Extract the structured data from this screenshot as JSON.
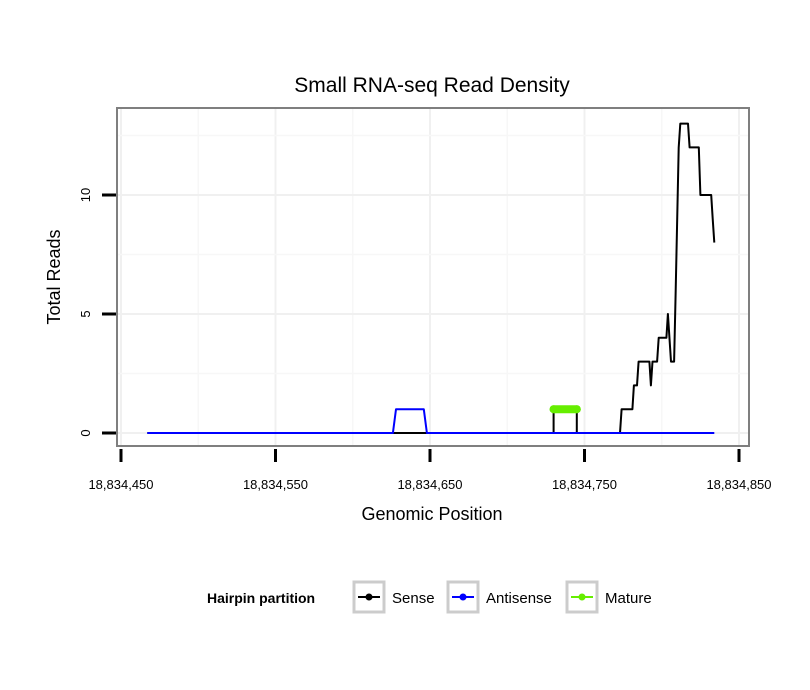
{
  "chart_data": {
    "type": "line",
    "title": "Small RNA-seq Read Density",
    "xlabel": "Genomic Position",
    "ylabel": "Total Reads",
    "xlim": [
      18834450,
      18834850
    ],
    "ylim": [
      -0.6,
      13.4
    ],
    "x_ticks": [
      18834450,
      18834550,
      18834650,
      18834750,
      18834850
    ],
    "x_tick_labels": [
      "18,834,450",
      "18,834,550",
      "18,834,650",
      "18,834,750",
      "18,834,850"
    ],
    "y_ticks": [
      0,
      5,
      10
    ],
    "y_tick_labels": [
      "0",
      "5",
      "10"
    ],
    "grid": true,
    "legend": {
      "title": "Hairpin partition",
      "placement": "bottom",
      "entries": [
        {
          "name": "Sense",
          "color": "#000000"
        },
        {
          "name": "Antisense",
          "color": "#0000ff"
        },
        {
          "name": "Mature",
          "color": "#66ee00"
        }
      ]
    },
    "series": [
      {
        "name": "Sense",
        "color": "#000000",
        "points": [
          [
            18834467,
            0
          ],
          [
            18834730,
            0
          ],
          [
            18834730,
            1
          ],
          [
            18834745,
            1
          ],
          [
            18834745,
            0
          ],
          [
            18834773,
            0
          ],
          [
            18834774,
            1
          ],
          [
            18834781,
            1
          ],
          [
            18834782,
            2
          ],
          [
            18834784,
            2
          ],
          [
            18834785,
            3
          ],
          [
            18834792,
            3
          ],
          [
            18834793,
            2
          ],
          [
            18834794,
            3
          ],
          [
            18834797,
            3
          ],
          [
            18834798,
            4
          ],
          [
            18834803,
            4
          ],
          [
            18834804,
            5
          ],
          [
            18834806,
            3
          ],
          [
            18834808,
            3
          ],
          [
            18834809,
            6
          ],
          [
            18834810,
            9
          ],
          [
            18834811,
            12
          ],
          [
            18834812,
            13
          ],
          [
            18834817,
            13
          ],
          [
            18834818,
            12
          ],
          [
            18834824,
            12
          ],
          [
            18834825,
            10
          ],
          [
            18834832,
            10
          ],
          [
            18834833,
            9
          ],
          [
            18834834,
            8
          ]
        ]
      },
      {
        "name": "Antisense",
        "color": "#0000ff",
        "points": [
          [
            18834467,
            0
          ],
          [
            18834626,
            0
          ],
          [
            18834628,
            1
          ],
          [
            18834646,
            1
          ],
          [
            18834648,
            0
          ],
          [
            18834834,
            0
          ]
        ]
      },
      {
        "name": "Mature",
        "color": "#66ee00",
        "points": [
          [
            18834730,
            1
          ],
          [
            18834745,
            1
          ]
        ]
      }
    ]
  }
}
